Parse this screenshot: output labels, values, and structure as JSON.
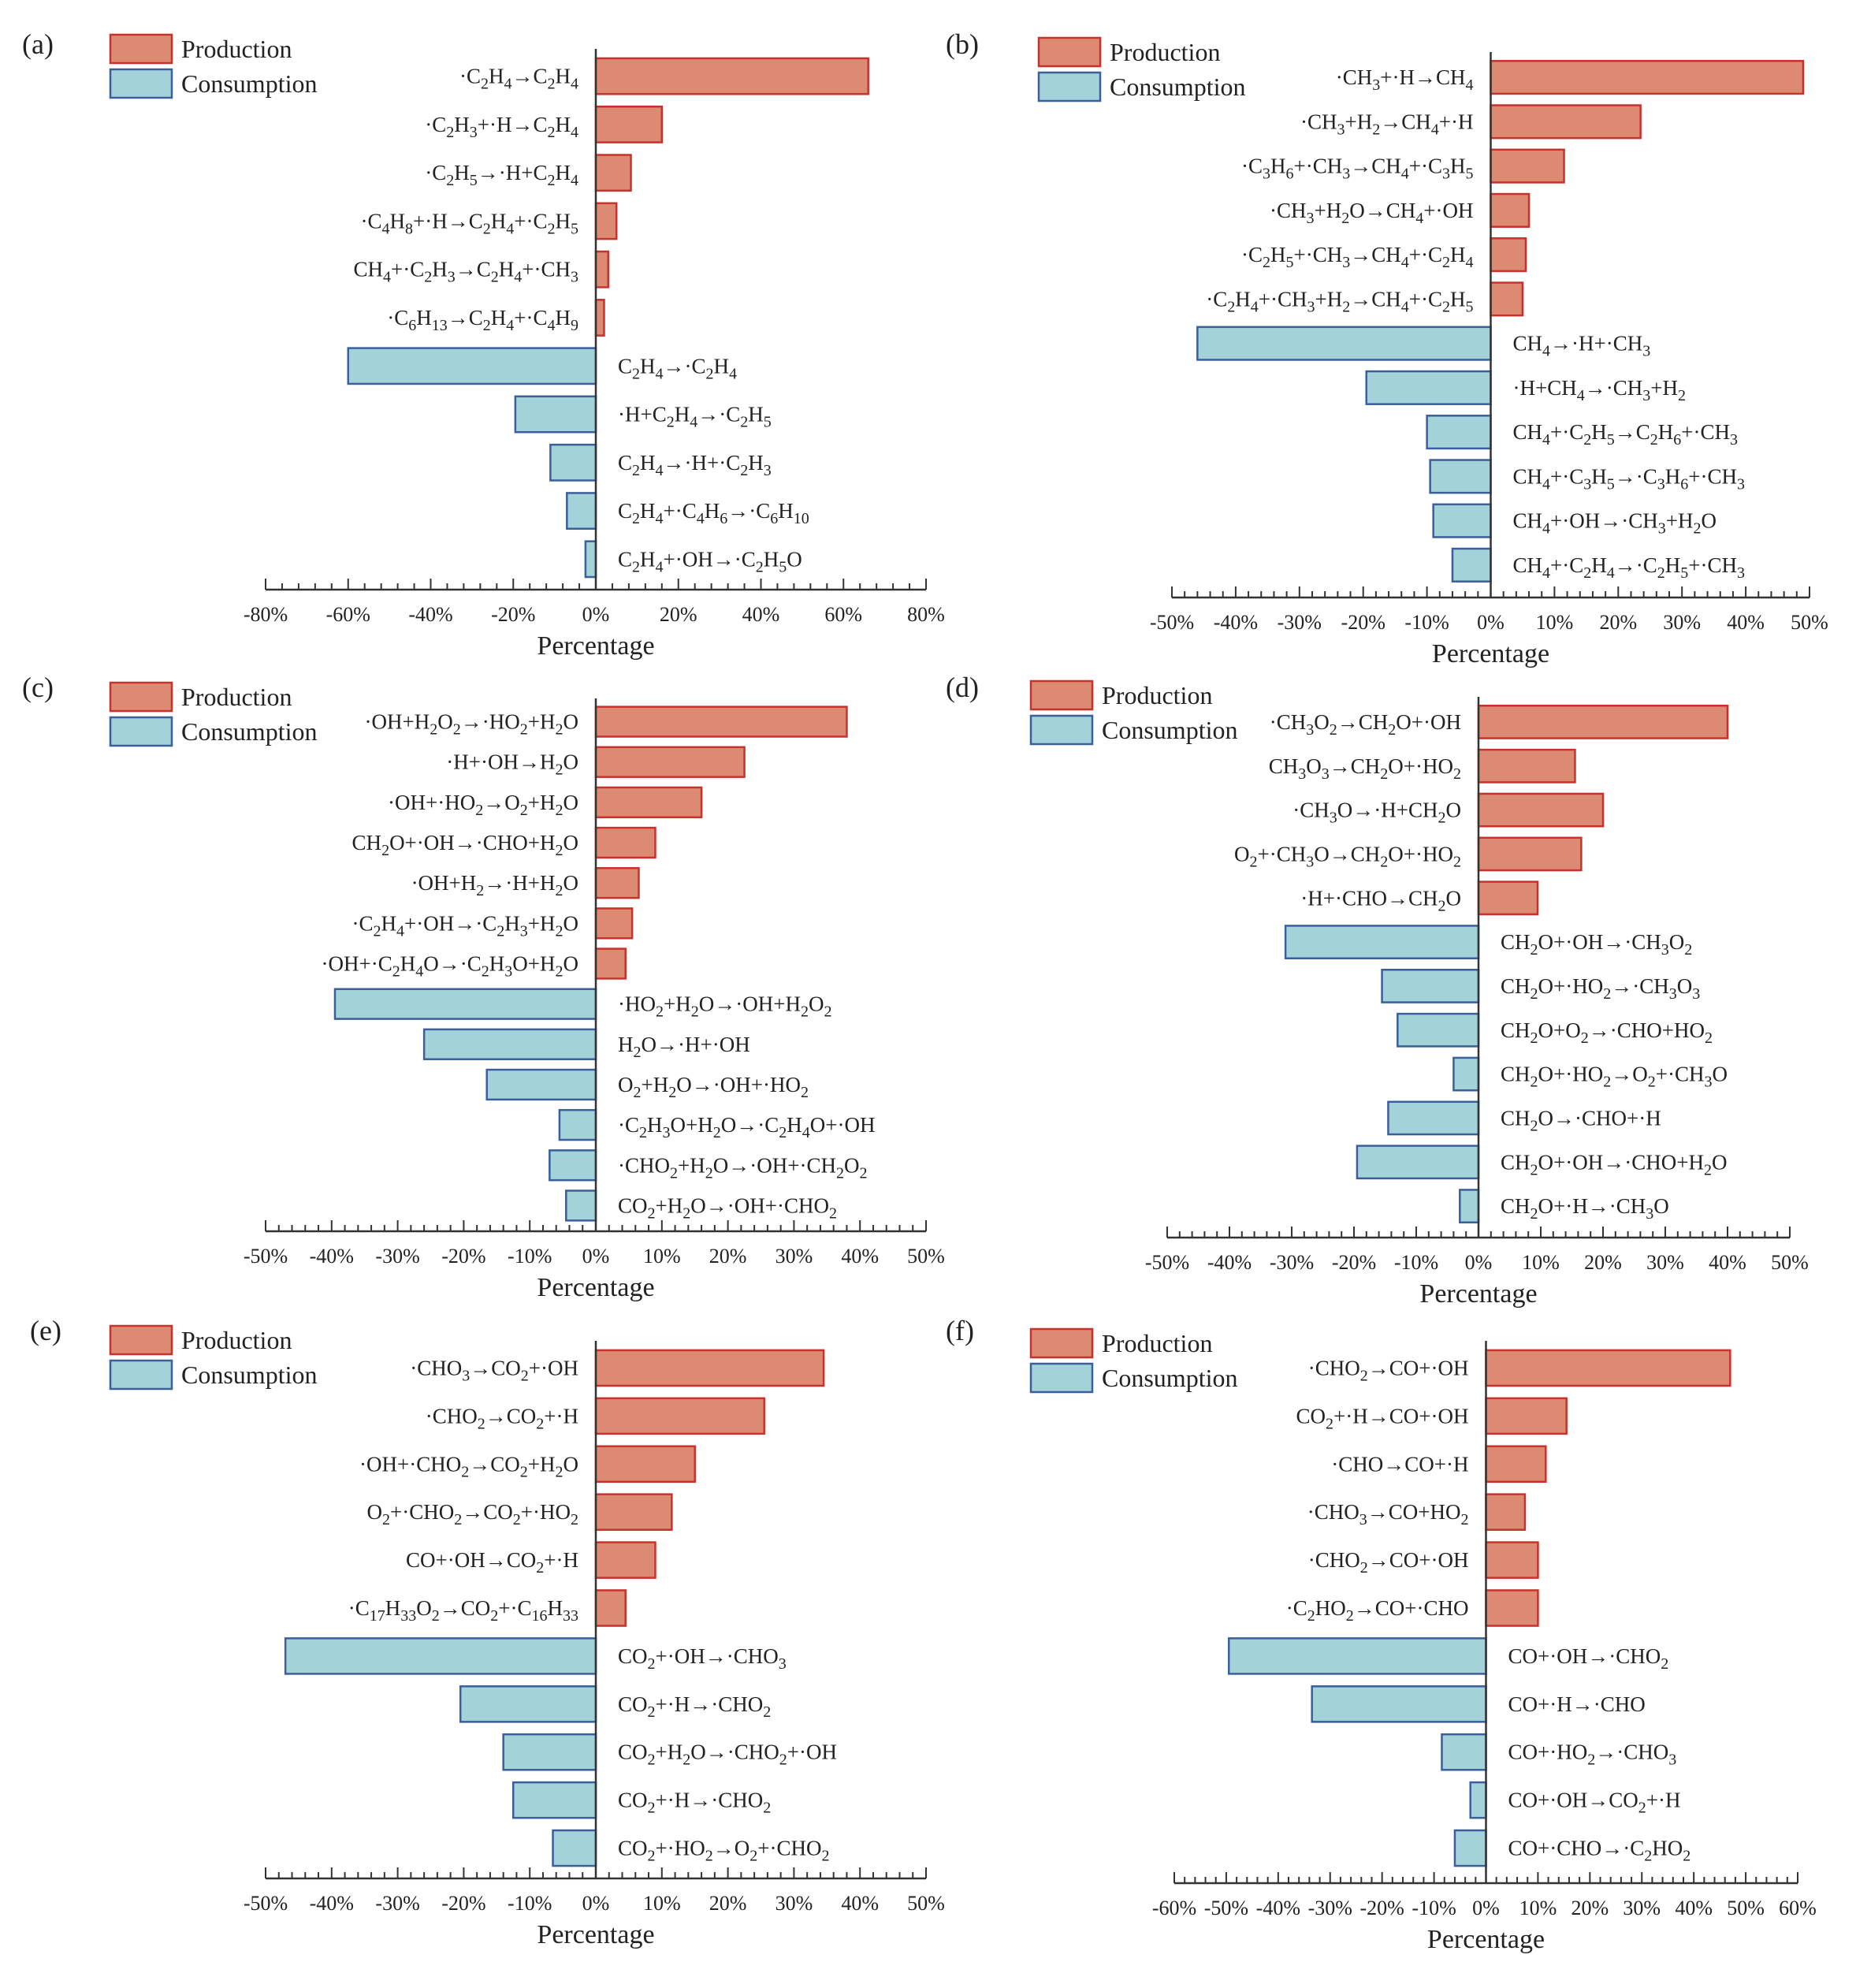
{
  "colors": {
    "production_fill": "#DD8A72",
    "production_stroke": "#C8322C",
    "consumption_fill": "#A3D3D9",
    "consumption_stroke": "#3A5F9A",
    "axis": "#333333"
  },
  "chart_data": [
    {
      "type": "bar",
      "panel_label": "(a)",
      "legend": [
        "Production",
        "Consumption"
      ],
      "xlabel": "Percentage",
      "xlim": [
        -80,
        80
      ],
      "xticks": [
        -80,
        -60,
        -40,
        -20,
        0,
        20,
        40,
        60,
        80
      ],
      "xtick_labels": [
        "-80%",
        "-60%",
        "-40%",
        "-20%",
        "0%",
        "20%",
        "40%",
        "60%",
        "80%"
      ],
      "production": [
        {
          "label": "·C<sub>2</sub>H<sub>4</sub>→C<sub>2</sub>H<sub>4</sub>",
          "value": 66
        },
        {
          "label": "·C<sub>2</sub>H<sub>3</sub>+·H→C<sub>2</sub>H<sub>4</sub>",
          "value": 16
        },
        {
          "label": "·C<sub>2</sub>H<sub>5</sub>→·H+C<sub>2</sub>H<sub>4</sub>",
          "value": 8.5
        },
        {
          "label": "·C<sub>4</sub>H<sub>8</sub>+·H→C<sub>2</sub>H<sub>4</sub>+·C<sub>2</sub>H<sub>5</sub>",
          "value": 5
        },
        {
          "label": "CH<sub>4</sub>+·C<sub>2</sub>H<sub>3</sub>→C<sub>2</sub>H<sub>4</sub>+·CH<sub>3</sub>",
          "value": 3
        },
        {
          "label": "·C<sub>6</sub>H<sub>13</sub>→C<sub>2</sub>H<sub>4</sub>+·C<sub>4</sub>H<sub>9</sub>",
          "value": 2
        }
      ],
      "consumption": [
        {
          "label": "C<sub>2</sub>H<sub>4</sub>→·C<sub>2</sub>H<sub>4</sub>",
          "value": -60
        },
        {
          "label": "·H+C<sub>2</sub>H<sub>4</sub>→·C<sub>2</sub>H<sub>5</sub>",
          "value": -19.5
        },
        {
          "label": "C<sub>2</sub>H<sub>4</sub>→·H+·C<sub>2</sub>H<sub>3</sub>",
          "value": -11
        },
        {
          "label": "C<sub>2</sub>H<sub>4</sub>+·C<sub>4</sub>H<sub>6</sub>→·C<sub>6</sub>H<sub>10</sub>",
          "value": -7
        },
        {
          "label": "C<sub>2</sub>H<sub>4</sub>+·OH→·C<sub>2</sub>H<sub>5</sub>O",
          "value": -2.5
        }
      ]
    },
    {
      "type": "bar",
      "panel_label": "(b)",
      "legend": [
        "Production",
        "Consumption"
      ],
      "xlabel": "Percentage",
      "xlim": [
        -50,
        50
      ],
      "xticks": [
        -50,
        -40,
        -30,
        -20,
        -10,
        0,
        10,
        20,
        30,
        40,
        50
      ],
      "xtick_labels": [
        "-50%",
        "-40%",
        "-30%",
        "-20%",
        "-10%",
        "0%",
        "10%",
        "20%",
        "30%",
        "40%",
        "50%"
      ],
      "production": [
        {
          "label": "·CH<sub>3</sub>+·H→CH<sub>4</sub>",
          "value": 49
        },
        {
          "label": "·CH<sub>3</sub>+H<sub>2</sub>→CH<sub>4</sub>+·H",
          "value": 23.5
        },
        {
          "label": "·C<sub>3</sub>H<sub>6</sub>+·CH<sub>3</sub>→CH<sub>4</sub>+·C<sub>3</sub>H<sub>5</sub>",
          "value": 11.5
        },
        {
          "label": "·CH<sub>3</sub>+H<sub>2</sub>O→CH<sub>4</sub>+·OH",
          "value": 6
        },
        {
          "label": "·C<sub>2</sub>H<sub>5</sub>+·CH<sub>3</sub>→CH<sub>4</sub>+·C<sub>2</sub>H<sub>4</sub>",
          "value": 5.5
        },
        {
          "label": "·C<sub>2</sub>H<sub>4</sub>+·CH<sub>3</sub>+H<sub>2</sub>→CH<sub>4</sub>+·C<sub>2</sub>H<sub>5</sub>",
          "value": 5
        }
      ],
      "consumption": [
        {
          "label": "CH<sub>4</sub>→·H+·CH<sub>3</sub>",
          "value": -46
        },
        {
          "label": "·H+CH<sub>4</sub>→·CH<sub>3</sub>+H<sub>2</sub>",
          "value": -19.5
        },
        {
          "label": "CH<sub>4</sub>+·C<sub>2</sub>H<sub>5</sub>→C<sub>2</sub>H<sub>6</sub>+·CH<sub>3</sub>",
          "value": -10
        },
        {
          "label": "CH<sub>4</sub>+·C<sub>3</sub>H<sub>5</sub>→·C<sub>3</sub>H<sub>6</sub>+·CH<sub>3</sub>",
          "value": -9.5
        },
        {
          "label": "CH<sub>4</sub>+·OH→·CH<sub>3</sub>+H<sub>2</sub>O",
          "value": -9
        },
        {
          "label": "CH<sub>4</sub>+·C<sub>2</sub>H<sub>4</sub>→·C<sub>2</sub>H<sub>5</sub>+·CH<sub>3</sub>",
          "value": -6
        }
      ]
    },
    {
      "type": "bar",
      "panel_label": "(c)",
      "legend": [
        "Production",
        "Consumption"
      ],
      "xlabel": "Percentage",
      "xlim": [
        -50,
        50
      ],
      "xticks": [
        -50,
        -40,
        -30,
        -20,
        -10,
        0,
        10,
        20,
        30,
        40,
        50
      ],
      "xtick_labels": [
        "-50%",
        "-40%",
        "-30%",
        "-20%",
        "-10%",
        "0%",
        "10%",
        "20%",
        "30%",
        "40%",
        "50%"
      ],
      "production": [
        {
          "label": "·OH+H<sub>2</sub>O<sub>2</sub>→·HO<sub>2</sub>+H<sub>2</sub>O",
          "value": 38
        },
        {
          "label": "·H+·OH→H<sub>2</sub>O",
          "value": 22.5
        },
        {
          "label": "·OH+·HO<sub>2</sub>→O<sub>2</sub>+H<sub>2</sub>O",
          "value": 16
        },
        {
          "label": "CH<sub>2</sub>O+·OH→·CHO+H<sub>2</sub>O",
          "value": 9
        },
        {
          "label": "·OH+H<sub>2</sub>→·H+H<sub>2</sub>O",
          "value": 6.5
        },
        {
          "label": "·C<sub>2</sub>H<sub>4</sub>+·OH→·C<sub>2</sub>H<sub>3</sub>+H<sub>2</sub>O",
          "value": 5.5
        },
        {
          "label": "·OH+·C<sub>2</sub>H<sub>4</sub>O→·C<sub>2</sub>H<sub>3</sub>O+H<sub>2</sub>O",
          "value": 4.5
        }
      ],
      "consumption": [
        {
          "label": "·HO<sub>2</sub>+H<sub>2</sub>O→·OH+H<sub>2</sub>O<sub>2</sub>",
          "value": -39.5
        },
        {
          "label": "H<sub>2</sub>O→·H+·OH",
          "value": -26
        },
        {
          "label": "O<sub>2</sub>+H<sub>2</sub>O→·OH+·HO<sub>2</sub>",
          "value": -16.5
        },
        {
          "label": "·C<sub>2</sub>H<sub>3</sub>O+H<sub>2</sub>O→·C<sub>2</sub>H<sub>4</sub>O+·OH",
          "value": -5.5
        },
        {
          "label": "·CHO<sub>2</sub>+H<sub>2</sub>O→·OH+·CH<sub>2</sub>O<sub>2</sub>",
          "value": -7
        },
        {
          "label": "CO<sub>2</sub>+H<sub>2</sub>O→·OH+·CHO<sub>2</sub>",
          "value": -4.5
        }
      ]
    },
    {
      "type": "bar",
      "panel_label": "(d)",
      "legend": [
        "Production",
        "Consumption"
      ],
      "xlabel": "Percentage",
      "xlim": [
        -50,
        50
      ],
      "xticks": [
        -50,
        -40,
        -30,
        -20,
        -10,
        0,
        10,
        20,
        30,
        40,
        50
      ],
      "xtick_labels": [
        "-50%",
        "-40%",
        "-30%",
        "-20%",
        "-10%",
        "0%",
        "10%",
        "20%",
        "30%",
        "40%",
        "50%"
      ],
      "production": [
        {
          "label": "·CH<sub>3</sub>O<sub>2</sub>→CH<sub>2</sub>O+·OH",
          "value": 40
        },
        {
          "label": "CH<sub>3</sub>O<sub>3</sub>→CH<sub>2</sub>O+·HO<sub>2</sub>",
          "value": 15.5
        },
        {
          "label": "·CH<sub>3</sub>O→·H+CH<sub>2</sub>O",
          "value": 20
        },
        {
          "label": "O<sub>2</sub>+·CH<sub>3</sub>O→CH<sub>2</sub>O+·HO<sub>2</sub>",
          "value": 16.5
        },
        {
          "label": "·H+·CHO→CH<sub>2</sub>O",
          "value": 9.5
        }
      ],
      "consumption": [
        {
          "label": "CH<sub>2</sub>O+·OH→·CH<sub>3</sub>O<sub>2</sub>",
          "value": -31
        },
        {
          "label": "CH<sub>2</sub>O+·HO<sub>2</sub>→·CH<sub>3</sub>O<sub>3</sub>",
          "value": -15.5
        },
        {
          "label": "CH<sub>2</sub>O+O<sub>2</sub>→·CHO+HO<sub>2</sub>",
          "value": -13
        },
        {
          "label": "CH<sub>2</sub>O+·HO<sub>2</sub>→O<sub>2</sub>+·CH<sub>3</sub>O",
          "value": -4
        },
        {
          "label": "CH<sub>2</sub>O→·CHO+·H",
          "value": -14.5
        },
        {
          "label": "CH<sub>2</sub>O+·OH→·CHO+H<sub>2</sub>O",
          "value": -19.5
        },
        {
          "label": "CH<sub>2</sub>O+·H→·CH<sub>3</sub>O",
          "value": -3
        }
      ]
    },
    {
      "type": "bar",
      "panel_label": "(e)",
      "legend": [
        "Production",
        "Consumption"
      ],
      "xlabel": "Percentage",
      "xlim": [
        -50,
        50
      ],
      "xticks": [
        -50,
        -40,
        -30,
        -20,
        -10,
        0,
        10,
        20,
        30,
        40,
        50
      ],
      "xtick_labels": [
        "-50%",
        "-40%",
        "-30%",
        "-20%",
        "-10%",
        "0%",
        "10%",
        "20%",
        "30%",
        "40%",
        "50%"
      ],
      "production": [
        {
          "label": "·CHO<sub>3</sub>→CO<sub>2</sub>+·OH",
          "value": 34.5
        },
        {
          "label": "·CHO<sub>2</sub>→CO<sub>2</sub>+·H",
          "value": 25.5
        },
        {
          "label": "·OH+·CHO<sub>2</sub>→CO<sub>2</sub>+H<sub>2</sub>O",
          "value": 15
        },
        {
          "label": "O<sub>2</sub>+·CHO<sub>2</sub>→CO<sub>2</sub>+·HO<sub>2</sub>",
          "value": 11.5
        },
        {
          "label": "CO+·OH→CO<sub>2</sub>+·H",
          "value": 9
        },
        {
          "label": "·C<sub>17</sub>H<sub>33</sub>O<sub>2</sub>→CO<sub>2</sub>+·C<sub>16</sub>H<sub>33</sub>",
          "value": 4.5
        }
      ],
      "consumption": [
        {
          "label": "CO<sub>2</sub>+·OH→·CHO<sub>3</sub>",
          "value": -47
        },
        {
          "label": "CO<sub>2</sub>+·H→·CHO<sub>2</sub>",
          "value": -20.5
        },
        {
          "label": "CO<sub>2</sub>+H<sub>2</sub>O→·CHO<sub>2</sub>+·OH",
          "value": -14
        },
        {
          "label": "CO<sub>2</sub>+·H→·CHO<sub>2</sub>",
          "value": -12.5
        },
        {
          "label": "CO<sub>2</sub>+·HO<sub>2</sub>→O<sub>2</sub>+·CHO<sub>2</sub>",
          "value": -6.5
        }
      ]
    },
    {
      "type": "bar",
      "panel_label": "(f)",
      "legend": [
        "Production",
        "Consumption"
      ],
      "xlabel": "Percentage",
      "xlim": [
        -60,
        60
      ],
      "xticks": [
        -60,
        -50,
        -40,
        -30,
        -20,
        -10,
        0,
        10,
        20,
        30,
        40,
        50,
        60
      ],
      "xtick_labels": [
        "-60%",
        "-50%",
        "-40%",
        "-30%",
        "-20%",
        "-10%",
        "0%",
        "10%",
        "20%",
        "30%",
        "40%",
        "50%",
        "60%"
      ],
      "production": [
        {
          "label": "·CHO<sub>2</sub>→CO+·OH",
          "value": 47
        },
        {
          "label": "CO<sub>2</sub>+·H→CO+·OH",
          "value": 15.5
        },
        {
          "label": "·CHO→CO+·H",
          "value": 11.5
        },
        {
          "label": "·CHO<sub>3</sub>→CO+HO<sub>2</sub>",
          "value": 7.5
        },
        {
          "label": "·CHO<sub>2</sub>→CO+·OH",
          "value": 10
        },
        {
          "label": "·C<sub>2</sub>HO<sub>2</sub>→CO+·CHO",
          "value": 10
        }
      ],
      "consumption": [
        {
          "label": "CO+·OH→·CHO<sub>2</sub>",
          "value": -49.5
        },
        {
          "label": "CO+·H→·CHO",
          "value": -33.5
        },
        {
          "label": "CO+·HO<sub>2</sub>→·CHO<sub>3</sub>",
          "value": -8.5
        },
        {
          "label": "CO+·OH→CO<sub>2</sub>+·H",
          "value": -3
        },
        {
          "label": "CO+·CHO→·C<sub>2</sub>HO<sub>2</sub>",
          "value": -6
        }
      ]
    }
  ]
}
